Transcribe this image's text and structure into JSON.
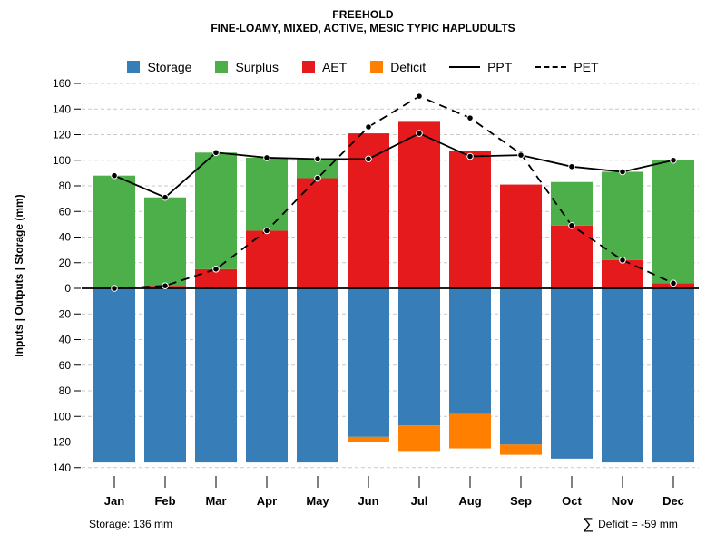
{
  "title": "FREEHOLD",
  "subtitle": "FINE-LOAMY, MIXED, ACTIVE, MESIC TYPIC HAPLUDULTS",
  "ylabel": "Inputs | Outputs | Storage   (mm)",
  "annotations": {
    "storage": "Storage: 136 mm",
    "sigma": "∑",
    "deficit": "Deficit = -59 mm"
  },
  "legend": [
    {
      "label": "Storage",
      "kind": "swatch",
      "color": "#377eb8"
    },
    {
      "label": "Surplus",
      "kind": "swatch",
      "color": "#4daf4a"
    },
    {
      "label": "AET",
      "kind": "swatch",
      "color": "#e41a1c"
    },
    {
      "label": "Deficit",
      "kind": "swatch",
      "color": "#ff7f00"
    },
    {
      "label": "PPT",
      "kind": "line-solid",
      "color": "#000000"
    },
    {
      "label": "PET",
      "kind": "line-dashed",
      "color": "#000000"
    }
  ],
  "chart_data": {
    "type": "bar",
    "title": "FREEHOLD",
    "subtitle": "FINE-LOAMY, MIXED, ACTIVE, MESIC TYPIC HAPLUDULTS",
    "ylabel": "Inputs | Outputs | Storage (mm)",
    "units": "mm",
    "categories": [
      "Jan",
      "Feb",
      "Mar",
      "Apr",
      "May",
      "Jun",
      "Jul",
      "Aug",
      "Sep",
      "Oct",
      "Nov",
      "Dec"
    ],
    "upper_axis": {
      "range": [
        0,
        160
      ],
      "tick_step": 20,
      "direction": "up"
    },
    "lower_axis": {
      "range": [
        0,
        140
      ],
      "tick_step": 20,
      "direction": "down"
    },
    "grid": true,
    "legend_position": "top",
    "series": [
      {
        "name": "Storage",
        "type": "bar",
        "direction": "down",
        "color": "#377eb8",
        "values": [
          136,
          136,
          136,
          136,
          136,
          116,
          107,
          98,
          122,
          133,
          136,
          136
        ]
      },
      {
        "name": "Deficit",
        "type": "bar",
        "direction": "down",
        "stacked_below": "Storage",
        "color": "#ff7f00",
        "values": [
          0,
          0,
          0,
          0,
          0,
          4,
          20,
          27,
          8,
          0,
          0,
          0
        ]
      },
      {
        "name": "AET",
        "type": "bar",
        "direction": "up",
        "color": "#e41a1c",
        "values": [
          1,
          2,
          15,
          45,
          86,
          121,
          130,
          107,
          81,
          49,
          22,
          4
        ]
      },
      {
        "name": "Surplus",
        "type": "bar",
        "direction": "up",
        "stacked_above": "AET",
        "color": "#4daf4a",
        "values": [
          87,
          69,
          91,
          57,
          15,
          0,
          0,
          0,
          0,
          34,
          69,
          96
        ]
      },
      {
        "name": "PPT",
        "type": "line",
        "style": "solid",
        "color": "#000000",
        "values": [
          88,
          71,
          106,
          102,
          101,
          101,
          121,
          103,
          104,
          95,
          91,
          100
        ]
      },
      {
        "name": "PET",
        "type": "line",
        "style": "dashed",
        "color": "#000000",
        "values": [
          0,
          2,
          15,
          45,
          86,
          126,
          150,
          133,
          105,
          49,
          22,
          4
        ]
      }
    ],
    "annotations": {
      "max_storage_mm": 136,
      "total_deficit_mm": -59
    }
  }
}
